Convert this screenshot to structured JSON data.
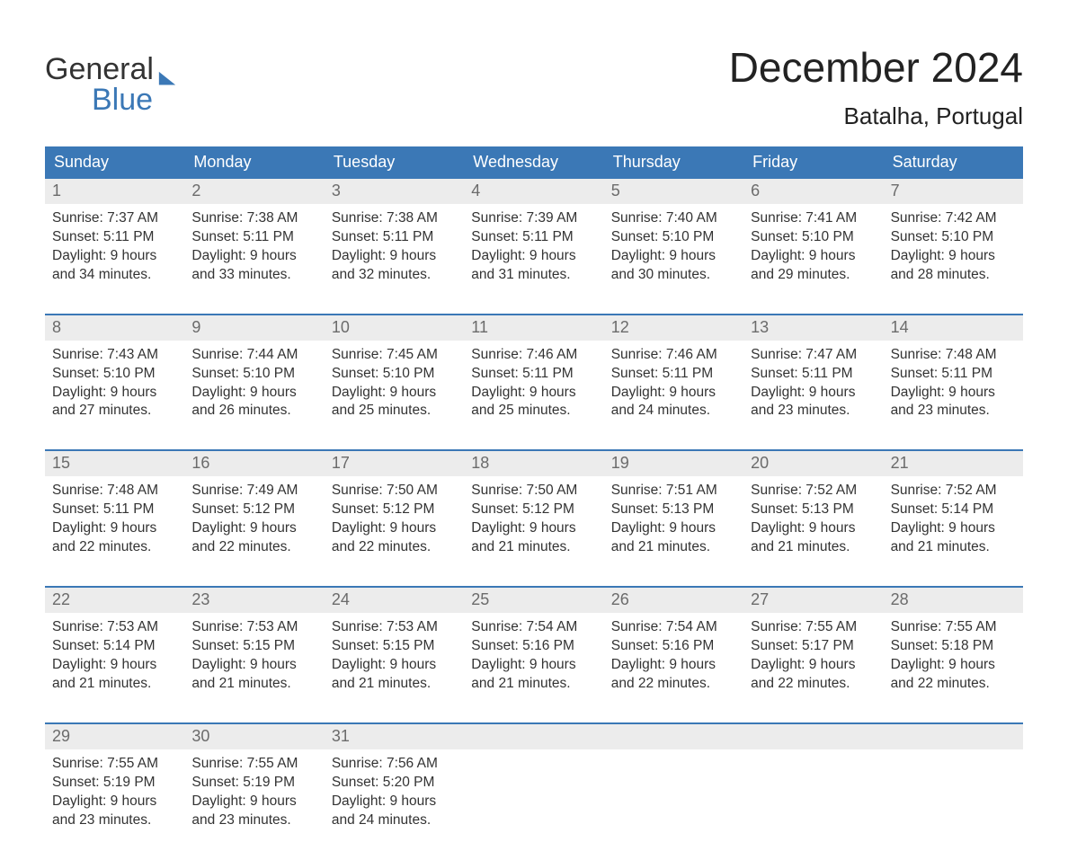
{
  "brand": {
    "line1": "General",
    "line2": "Blue",
    "text_color": "#333333",
    "accent_color": "#3b78b6"
  },
  "title": "December 2024",
  "location": "Batalha, Portugal",
  "colors": {
    "header_bg": "#3b78b6",
    "header_text": "#ffffff",
    "daynum_bg": "#ececec",
    "daynum_text": "#6b6b6b",
    "body_text": "#333333",
    "page_bg": "#ffffff",
    "week_divider": "#3b78b6"
  },
  "days_of_week": [
    "Sunday",
    "Monday",
    "Tuesday",
    "Wednesday",
    "Thursday",
    "Friday",
    "Saturday"
  ],
  "weeks": [
    {
      "cells": [
        {
          "num": "1",
          "sunrise": "Sunrise: 7:37 AM",
          "sunset": "Sunset: 5:11 PM",
          "dl1": "Daylight: 9 hours",
          "dl2": "and 34 minutes."
        },
        {
          "num": "2",
          "sunrise": "Sunrise: 7:38 AM",
          "sunset": "Sunset: 5:11 PM",
          "dl1": "Daylight: 9 hours",
          "dl2": "and 33 minutes."
        },
        {
          "num": "3",
          "sunrise": "Sunrise: 7:38 AM",
          "sunset": "Sunset: 5:11 PM",
          "dl1": "Daylight: 9 hours",
          "dl2": "and 32 minutes."
        },
        {
          "num": "4",
          "sunrise": "Sunrise: 7:39 AM",
          "sunset": "Sunset: 5:11 PM",
          "dl1": "Daylight: 9 hours",
          "dl2": "and 31 minutes."
        },
        {
          "num": "5",
          "sunrise": "Sunrise: 7:40 AM",
          "sunset": "Sunset: 5:10 PM",
          "dl1": "Daylight: 9 hours",
          "dl2": "and 30 minutes."
        },
        {
          "num": "6",
          "sunrise": "Sunrise: 7:41 AM",
          "sunset": "Sunset: 5:10 PM",
          "dl1": "Daylight: 9 hours",
          "dl2": "and 29 minutes."
        },
        {
          "num": "7",
          "sunrise": "Sunrise: 7:42 AM",
          "sunset": "Sunset: 5:10 PM",
          "dl1": "Daylight: 9 hours",
          "dl2": "and 28 minutes."
        }
      ]
    },
    {
      "cells": [
        {
          "num": "8",
          "sunrise": "Sunrise: 7:43 AM",
          "sunset": "Sunset: 5:10 PM",
          "dl1": "Daylight: 9 hours",
          "dl2": "and 27 minutes."
        },
        {
          "num": "9",
          "sunrise": "Sunrise: 7:44 AM",
          "sunset": "Sunset: 5:10 PM",
          "dl1": "Daylight: 9 hours",
          "dl2": "and 26 minutes."
        },
        {
          "num": "10",
          "sunrise": "Sunrise: 7:45 AM",
          "sunset": "Sunset: 5:10 PM",
          "dl1": "Daylight: 9 hours",
          "dl2": "and 25 minutes."
        },
        {
          "num": "11",
          "sunrise": "Sunrise: 7:46 AM",
          "sunset": "Sunset: 5:11 PM",
          "dl1": "Daylight: 9 hours",
          "dl2": "and 25 minutes."
        },
        {
          "num": "12",
          "sunrise": "Sunrise: 7:46 AM",
          "sunset": "Sunset: 5:11 PM",
          "dl1": "Daylight: 9 hours",
          "dl2": "and 24 minutes."
        },
        {
          "num": "13",
          "sunrise": "Sunrise: 7:47 AM",
          "sunset": "Sunset: 5:11 PM",
          "dl1": "Daylight: 9 hours",
          "dl2": "and 23 minutes."
        },
        {
          "num": "14",
          "sunrise": "Sunrise: 7:48 AM",
          "sunset": "Sunset: 5:11 PM",
          "dl1": "Daylight: 9 hours",
          "dl2": "and 23 minutes."
        }
      ]
    },
    {
      "cells": [
        {
          "num": "15",
          "sunrise": "Sunrise: 7:48 AM",
          "sunset": "Sunset: 5:11 PM",
          "dl1": "Daylight: 9 hours",
          "dl2": "and 22 minutes."
        },
        {
          "num": "16",
          "sunrise": "Sunrise: 7:49 AM",
          "sunset": "Sunset: 5:12 PM",
          "dl1": "Daylight: 9 hours",
          "dl2": "and 22 minutes."
        },
        {
          "num": "17",
          "sunrise": "Sunrise: 7:50 AM",
          "sunset": "Sunset: 5:12 PM",
          "dl1": "Daylight: 9 hours",
          "dl2": "and 22 minutes."
        },
        {
          "num": "18",
          "sunrise": "Sunrise: 7:50 AM",
          "sunset": "Sunset: 5:12 PM",
          "dl1": "Daylight: 9 hours",
          "dl2": "and 21 minutes."
        },
        {
          "num": "19",
          "sunrise": "Sunrise: 7:51 AM",
          "sunset": "Sunset: 5:13 PM",
          "dl1": "Daylight: 9 hours",
          "dl2": "and 21 minutes."
        },
        {
          "num": "20",
          "sunrise": "Sunrise: 7:52 AM",
          "sunset": "Sunset: 5:13 PM",
          "dl1": "Daylight: 9 hours",
          "dl2": "and 21 minutes."
        },
        {
          "num": "21",
          "sunrise": "Sunrise: 7:52 AM",
          "sunset": "Sunset: 5:14 PM",
          "dl1": "Daylight: 9 hours",
          "dl2": "and 21 minutes."
        }
      ]
    },
    {
      "cells": [
        {
          "num": "22",
          "sunrise": "Sunrise: 7:53 AM",
          "sunset": "Sunset: 5:14 PM",
          "dl1": "Daylight: 9 hours",
          "dl2": "and 21 minutes."
        },
        {
          "num": "23",
          "sunrise": "Sunrise: 7:53 AM",
          "sunset": "Sunset: 5:15 PM",
          "dl1": "Daylight: 9 hours",
          "dl2": "and 21 minutes."
        },
        {
          "num": "24",
          "sunrise": "Sunrise: 7:53 AM",
          "sunset": "Sunset: 5:15 PM",
          "dl1": "Daylight: 9 hours",
          "dl2": "and 21 minutes."
        },
        {
          "num": "25",
          "sunrise": "Sunrise: 7:54 AM",
          "sunset": "Sunset: 5:16 PM",
          "dl1": "Daylight: 9 hours",
          "dl2": "and 21 minutes."
        },
        {
          "num": "26",
          "sunrise": "Sunrise: 7:54 AM",
          "sunset": "Sunset: 5:16 PM",
          "dl1": "Daylight: 9 hours",
          "dl2": "and 22 minutes."
        },
        {
          "num": "27",
          "sunrise": "Sunrise: 7:55 AM",
          "sunset": "Sunset: 5:17 PM",
          "dl1": "Daylight: 9 hours",
          "dl2": "and 22 minutes."
        },
        {
          "num": "28",
          "sunrise": "Sunrise: 7:55 AM",
          "sunset": "Sunset: 5:18 PM",
          "dl1": "Daylight: 9 hours",
          "dl2": "and 22 minutes."
        }
      ]
    },
    {
      "cells": [
        {
          "num": "29",
          "sunrise": "Sunrise: 7:55 AM",
          "sunset": "Sunset: 5:19 PM",
          "dl1": "Daylight: 9 hours",
          "dl2": "and 23 minutes."
        },
        {
          "num": "30",
          "sunrise": "Sunrise: 7:55 AM",
          "sunset": "Sunset: 5:19 PM",
          "dl1": "Daylight: 9 hours",
          "dl2": "and 23 minutes."
        },
        {
          "num": "31",
          "sunrise": "Sunrise: 7:56 AM",
          "sunset": "Sunset: 5:20 PM",
          "dl1": "Daylight: 9 hours",
          "dl2": "and 24 minutes."
        },
        {
          "num": "",
          "sunrise": "",
          "sunset": "",
          "dl1": "",
          "dl2": ""
        },
        {
          "num": "",
          "sunrise": "",
          "sunset": "",
          "dl1": "",
          "dl2": ""
        },
        {
          "num": "",
          "sunrise": "",
          "sunset": "",
          "dl1": "",
          "dl2": ""
        },
        {
          "num": "",
          "sunrise": "",
          "sunset": "",
          "dl1": "",
          "dl2": ""
        }
      ]
    }
  ]
}
